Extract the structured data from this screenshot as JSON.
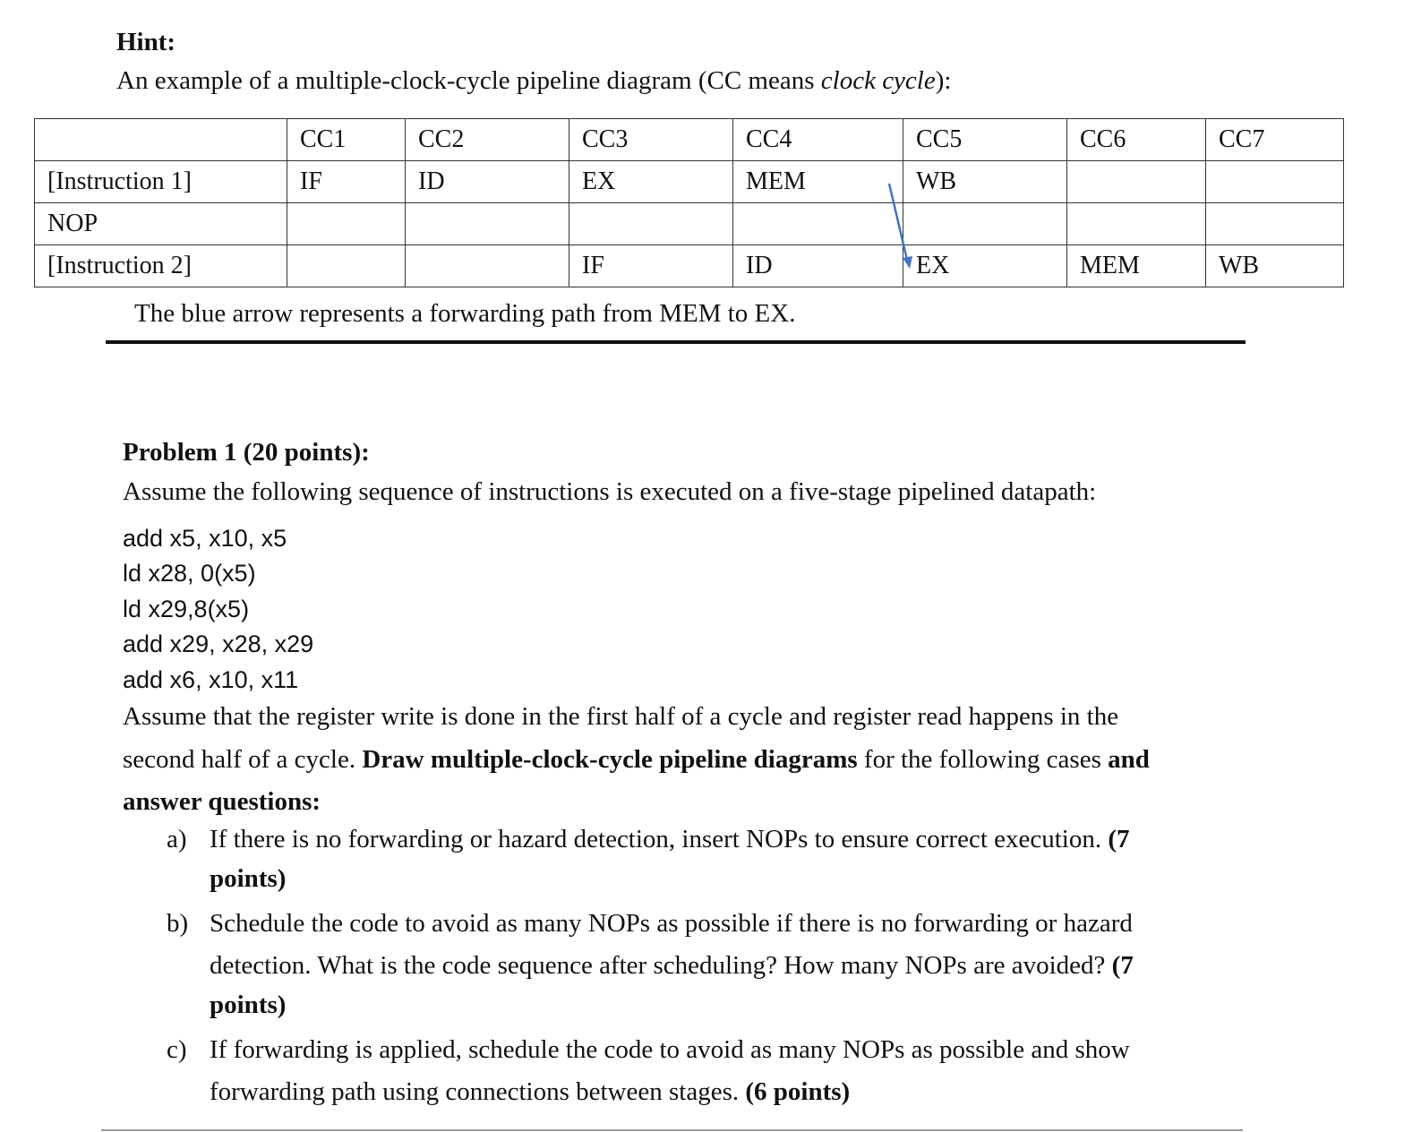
{
  "hint": {
    "heading": "Hint:",
    "intro_prefix": "An example of a multiple-clock-cycle pipeline diagram (CC means ",
    "intro_italic": "clock cycle",
    "intro_suffix": "):"
  },
  "pipeline_table": {
    "headers": [
      "",
      "CC1",
      "CC2",
      "CC3",
      "CC4",
      "CC5",
      "CC6",
      "CC7"
    ],
    "rows": [
      [
        "[Instruction 1]",
        "IF",
        "ID",
        "EX",
        "MEM",
        "WB",
        "",
        ""
      ],
      [
        "NOP",
        "",
        "",
        "",
        "",
        "",
        "",
        ""
      ],
      [
        "[Instruction 2]",
        "",
        "",
        "IF",
        "ID",
        "EX",
        "MEM",
        "WB"
      ]
    ],
    "arrow_color": "#4472c4",
    "caption": "The blue arrow represents a forwarding path from MEM to EX."
  },
  "problem": {
    "title": "Problem 1 (20 points):",
    "intro": "Assume the following sequence of instructions is executed on a five-stage pipelined datapath:",
    "code": [
      "add x5, x10, x5",
      "ld x28, 0(x5)",
      "ld x29,8(x5)",
      "add x29, x28, x29",
      "add x6, x10, x11"
    ],
    "para_line1": "Assume that the register write is done in the first half of a cycle and register read happens in the",
    "para_line2_a": "second half of a cycle. ",
    "para_line2_b": "Draw multiple-clock-cycle pipeline diagrams",
    "para_line2_c": " for the following cases ",
    "para_line2_d": "and",
    "para_line3": "answer questions:",
    "items": [
      {
        "marker": "a)",
        "lines": [
          "If there is no forwarding or hazard detection, insert NOPs to ensure correct execution. ",
          ""
        ],
        "bold_tail": [
          "(7",
          "points)"
        ]
      },
      {
        "marker": "b)",
        "lines": [
          "Schedule the code to avoid as many NOPs as possible if there is no forwarding or hazard",
          "detection. What is the code sequence after scheduling? How many NOPs are avoided? ",
          ""
        ],
        "bold_tail": [
          "",
          "(7",
          "points)"
        ]
      },
      {
        "marker": "c)",
        "lines": [
          "If forwarding is applied, schedule the code to avoid as many NOPs as possible and show",
          "forwarding path using connections between stages. "
        ],
        "bold_tail": [
          "",
          "(6 points)"
        ]
      }
    ]
  }
}
